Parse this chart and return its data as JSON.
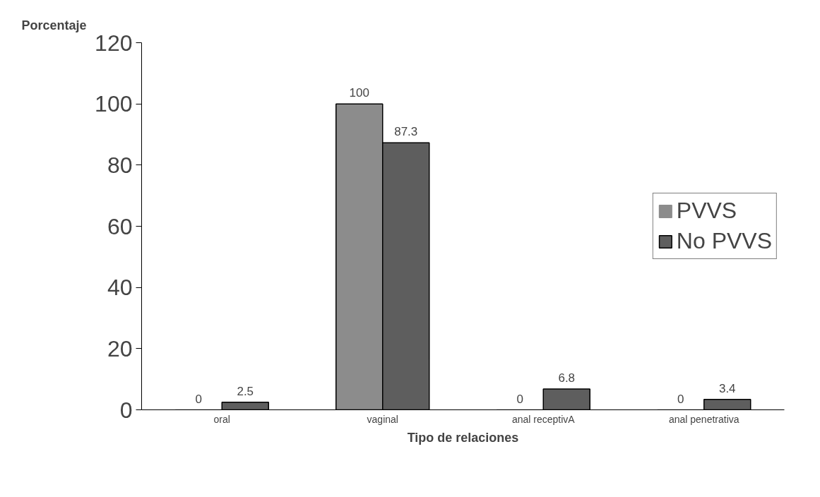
{
  "chart_data": {
    "type": "bar",
    "ylabel": "Porcentaje",
    "xlabel": "Tipo de relaciones",
    "categories": [
      "oral",
      "vaginal",
      "anal receptivA",
      "anal penetrativa"
    ],
    "series": [
      {
        "name": "PVVS",
        "color": "#8c8c8c",
        "values": [
          0,
          100,
          0,
          0
        ]
      },
      {
        "name": "No PVVS",
        "color": "#5e5e5e",
        "values": [
          2.5,
          87.3,
          6.8,
          3.4
        ]
      }
    ],
    "ylim": [
      0,
      120
    ],
    "yticks": [
      0,
      20,
      40,
      60,
      80,
      100,
      120
    ],
    "grid": false,
    "legend": "right",
    "data_labels": true
  }
}
